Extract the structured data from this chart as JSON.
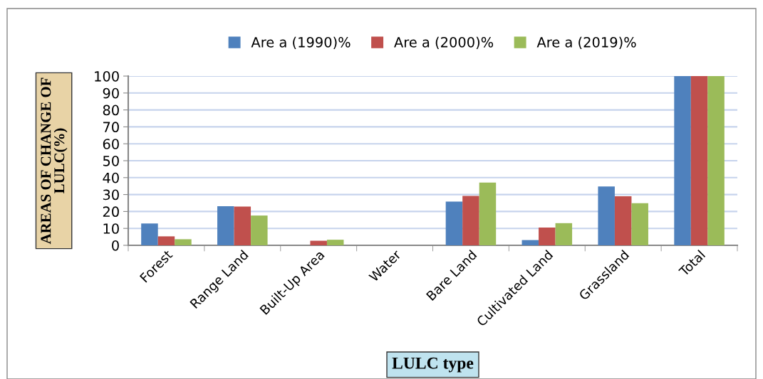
{
  "chart_data": {
    "type": "bar",
    "xlabel": "LULC type",
    "ylabel": "AREAS OF CHANGE OF\nLULC(%)",
    "categories": [
      "Forest",
      "Range Land",
      "Built-Up Area",
      "Water",
      "Bare Land",
      "Cultivated Land",
      "Grassland",
      "Total"
    ],
    "series": [
      {
        "name": "Are a (1990)%",
        "color": "#4f81bd",
        "values": [
          12.9,
          23.1,
          0,
          null,
          25.8,
          3.1,
          34.8,
          100
        ]
      },
      {
        "name": "Are a (2000)%",
        "color": "#c0504d",
        "values": [
          5.3,
          22.9,
          2.7,
          null,
          29.2,
          10.5,
          29,
          100
        ]
      },
      {
        "name": "Are a (2019)%",
        "color": "#9bbb59",
        "values": [
          3.6,
          17.6,
          3.3,
          null,
          37.1,
          13.1,
          24.9,
          100
        ]
      }
    ],
    "ylim": [
      0,
      100
    ],
    "yticks": [
      0,
      10,
      20,
      30,
      40,
      50,
      60,
      70,
      80,
      90,
      100
    ],
    "grid": "y",
    "legend": "top"
  }
}
